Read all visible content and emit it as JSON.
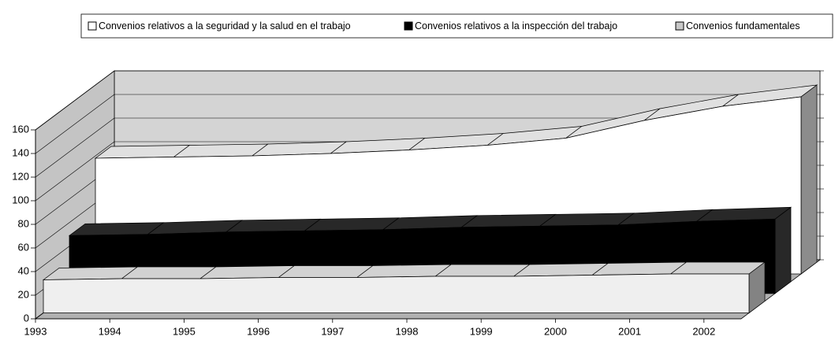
{
  "chart_data": {
    "type": "area3d",
    "categories": [
      "1993",
      "1994",
      "1995",
      "1996",
      "1997",
      "1998",
      "1999",
      "2000",
      "2001",
      "2002"
    ],
    "series": [
      {
        "name": "Convenios relativos a la seguridad y la salud en el trabajo",
        "color": "#ffffff",
        "values": [
          98,
          99,
          100,
          102,
          105,
          109,
          115,
          130,
          142,
          150
        ]
      },
      {
        "name": "Convenios relativos a la inspección del trabajo",
        "color": "#000000",
        "values": [
          49,
          50,
          52,
          53,
          54,
          56,
          57,
          58,
          61,
          63
        ]
      },
      {
        "name": "Convenios fundamentales",
        "color": "#efefef",
        "values": [
          28,
          29,
          29,
          30,
          30,
          31,
          31,
          32,
          33,
          33
        ]
      }
    ],
    "ylim": [
      0,
      160
    ],
    "yticks": [
      0,
      20,
      40,
      60,
      80,
      100,
      120,
      140,
      160
    ],
    "grid": true,
    "legend": "top"
  }
}
